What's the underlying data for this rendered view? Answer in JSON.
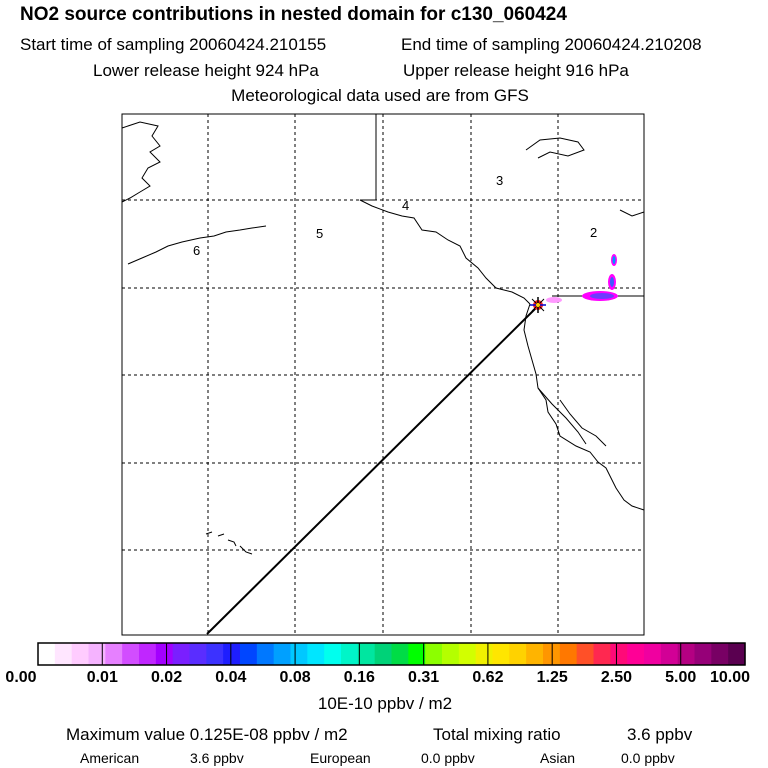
{
  "header": {
    "title": "NO2 source contributions in nested domain for c130_060424",
    "start_time": "Start time of sampling 20060424.210155",
    "end_time": "End time of sampling 20060424.210208",
    "lower_height": "Lower release height  924 hPa",
    "upper_height": "Upper release height  916 hPa",
    "met_data": "Meteorological data used are from GFS"
  },
  "map": {
    "region_labels": [
      "2",
      "3",
      "4",
      "5",
      "6"
    ]
  },
  "colorbar": {
    "tick_labels": [
      "0.00",
      "0.01",
      "0.02",
      "0.04",
      "0.08",
      "0.16",
      "0.31",
      "0.62",
      "1.25",
      "2.50",
      "5.00",
      "10.00"
    ],
    "units": "10E-10 ppbv / m2",
    "colors": [
      "#ffffff",
      "#ffe6ff",
      "#ffccff",
      "#f5b3ff",
      "#e680ff",
      "#d24dff",
      "#c026ff",
      "#a300ff",
      "#7a1fff",
      "#5a2dff",
      "#3c32ff",
      "#1e1eff",
      "#0046ff",
      "#0078ff",
      "#00a0ff",
      "#00c8ff",
      "#00e6ff",
      "#00ffee",
      "#00f5c8",
      "#00e6a0",
      "#00d278",
      "#00dc46",
      "#00ff00",
      "#8cff00",
      "#b4ff00",
      "#d2ff00",
      "#f0f000",
      "#ffe600",
      "#ffd200",
      "#ffb400",
      "#ff9600",
      "#ff7800",
      "#ff5028",
      "#ff2850",
      "#ff0a78",
      "#ff0096",
      "#f000a0",
      "#d20096",
      "#b40082",
      "#960078",
      "#780064",
      "#5a0050"
    ]
  },
  "footer": {
    "max_value": "Maximum value  0.125E-08 ppbv / m2",
    "total_label": "Total mixing ratio",
    "total_value": "3.6 ppbv",
    "regions": [
      {
        "name": "American",
        "value": "3.6 ppbv"
      },
      {
        "name": "European",
        "value": "0.0 ppbv"
      },
      {
        "name": "Asian",
        "value": "0.0 ppbv"
      }
    ]
  }
}
